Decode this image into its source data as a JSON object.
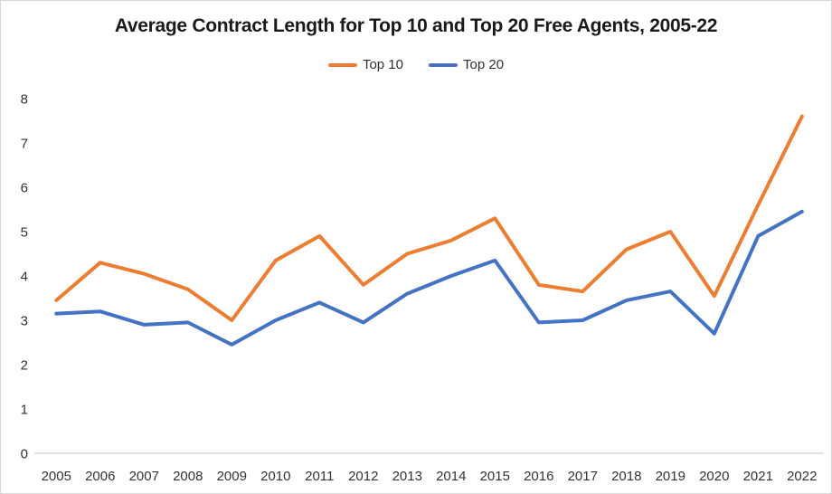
{
  "title": "Average Contract Length for Top 10 and Top 20 Free Agents, 2005-22",
  "colors": {
    "top10": "#ED7D31",
    "top20": "#4472C4",
    "axis_line": "#D9D9D9",
    "tick_text": "#333333",
    "title_text": "#1A1A1A",
    "frame_border": "#D7D7D7",
    "background": "#FFFFFF"
  },
  "chart_data": {
    "type": "line",
    "title": "Average Contract Length for Top 10 and Top 20 Free Agents, 2005-22",
    "x": [
      "2005",
      "2006",
      "2007",
      "2008",
      "2009",
      "2010",
      "2011",
      "2012",
      "2013",
      "2014",
      "2015",
      "2016",
      "2017",
      "2018",
      "2019",
      "2020",
      "2021",
      "2022"
    ],
    "series": [
      {
        "name": "Top 10",
        "color": "#ED7D31",
        "values": [
          3.45,
          4.3,
          4.05,
          3.7,
          3.0,
          4.35,
          4.9,
          3.8,
          4.5,
          4.8,
          5.3,
          3.8,
          3.65,
          4.6,
          5.0,
          3.55,
          5.6,
          7.6
        ]
      },
      {
        "name": "Top 20",
        "color": "#4472C4",
        "values": [
          3.15,
          3.2,
          2.9,
          2.95,
          2.45,
          3.0,
          3.4,
          2.95,
          3.6,
          4.0,
          4.35,
          2.95,
          3.0,
          3.45,
          3.65,
          2.7,
          4.9,
          5.45
        ]
      }
    ],
    "xlabel": "",
    "ylabel": "",
    "ylim": [
      0,
      8
    ],
    "yticks": [
      0,
      1,
      2,
      3,
      4,
      5,
      6,
      7,
      8
    ],
    "grid": false,
    "legend_position": "top-center"
  }
}
